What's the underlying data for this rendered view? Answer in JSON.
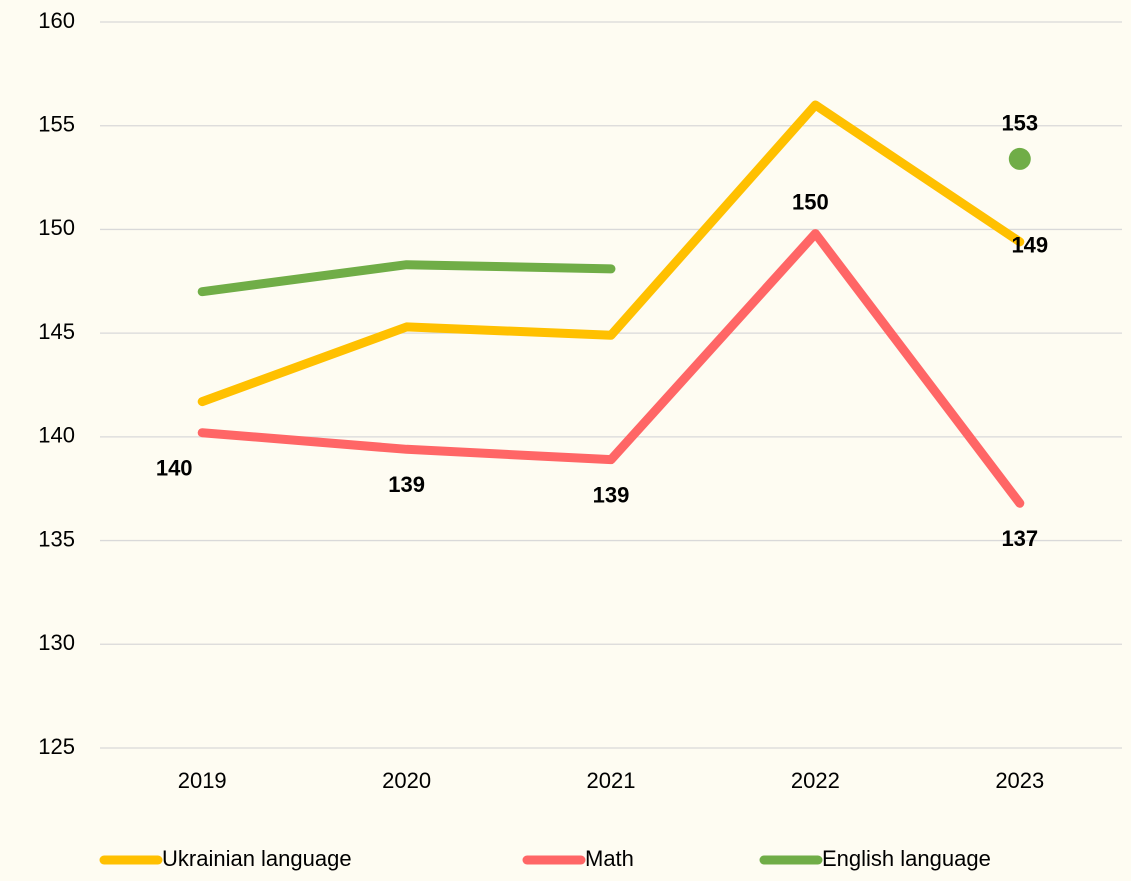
{
  "chart_data": {
    "type": "line",
    "categories": [
      "2019",
      "2020",
      "2021",
      "2022",
      "2023"
    ],
    "series": [
      {
        "name": "Ukrainian language",
        "color": "#ffc000",
        "values": [
          141.7,
          145.3,
          144.9,
          156.0,
          149.4
        ],
        "value_labels": [
          null,
          null,
          null,
          null,
          "149"
        ]
      },
      {
        "name": "Math",
        "color": "#ff6666",
        "values": [
          140.2,
          139.4,
          138.9,
          149.8,
          136.8
        ],
        "value_labels": [
          "140",
          "139",
          "139",
          "150",
          "137"
        ]
      },
      {
        "name": "English language",
        "color": "#70ad47",
        "values": [
          147.0,
          148.3,
          148.1,
          null,
          153.4
        ],
        "value_labels": [
          null,
          null,
          null,
          null,
          "153"
        ]
      }
    ],
    "ylim": [
      125,
      160
    ],
    "yticks": [
      125,
      130,
      135,
      140,
      145,
      150,
      155,
      160
    ],
    "grid": true,
    "legend": "bottom"
  }
}
